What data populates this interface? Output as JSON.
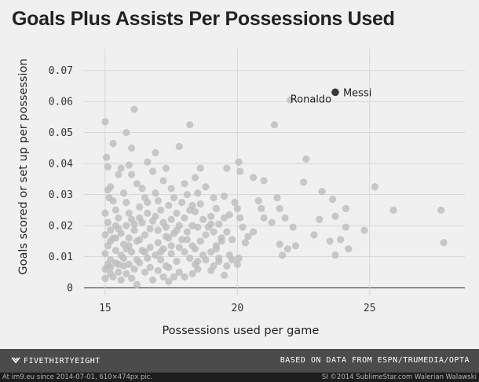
{
  "chart_data": {
    "type": "scatter",
    "title": "Goals Plus Assists Per Possessions Used",
    "xlabel": "Possessions used per game",
    "ylabel": "Goals scored or set up per possession",
    "xlim": [
      14.2,
      28.6
    ],
    "ylim": [
      0,
      0.075
    ],
    "x_ticks": [
      15,
      20,
      25
    ],
    "x_tick_labels": [
      "15",
      "20",
      "25"
    ],
    "y_ticks": [
      0,
      0.01,
      0.02,
      0.03,
      0.04,
      0.05,
      0.06,
      0.07
    ],
    "y_tick_labels": [
      "0",
      "0.01",
      "0.02",
      "0.03",
      "0.04",
      "0.05",
      "0.06",
      "0.07"
    ],
    "grid": true,
    "colors": {
      "point": "#bdbdbd",
      "highlight": "#3a3a3a",
      "grid": "#d6d6d6"
    },
    "highlights": [
      {
        "name": "Messi",
        "x": 23.7,
        "y": 0.063
      }
    ],
    "annotations": [
      {
        "text": "Ronaldo",
        "x": 22.0,
        "y": 0.061
      }
    ],
    "points": [
      [
        15.0,
        0.0535
      ],
      [
        15.05,
        0.042
      ],
      [
        15.1,
        0.039
      ],
      [
        15.2,
        0.0325
      ],
      [
        15.1,
        0.0315
      ],
      [
        15.15,
        0.029
      ],
      [
        15.3,
        0.0465
      ],
      [
        15.5,
        0.0365
      ],
      [
        15.8,
        0.05
      ],
      [
        16.0,
        0.045
      ],
      [
        16.1,
        0.0575
      ],
      [
        15.9,
        0.0395
      ],
      [
        15.6,
        0.0385
      ],
      [
        16.6,
        0.0405
      ],
      [
        16.9,
        0.0435
      ],
      [
        17.8,
        0.0455
      ],
      [
        18.2,
        0.0525
      ],
      [
        17.3,
        0.0385
      ],
      [
        18.4,
        0.0355
      ],
      [
        18.6,
        0.0385
      ],
      [
        19.6,
        0.0385
      ],
      [
        20.05,
        0.0405
      ],
      [
        20.1,
        0.0375
      ],
      [
        20.6,
        0.0355
      ],
      [
        21.0,
        0.0345
      ],
      [
        21.4,
        0.0525
      ],
      [
        22.0,
        0.0605
      ],
      [
        22.6,
        0.0415
      ],
      [
        22.5,
        0.034
      ],
      [
        23.2,
        0.031
      ],
      [
        23.6,
        0.0285
      ],
      [
        23.7,
        0.023
      ],
      [
        24.1,
        0.0255
      ],
      [
        24.1,
        0.0195
      ],
      [
        23.9,
        0.0155
      ],
      [
        24.2,
        0.0125
      ],
      [
        23.5,
        0.015
      ],
      [
        23.7,
        0.0105
      ],
      [
        23.1,
        0.022
      ],
      [
        22.9,
        0.017
      ],
      [
        22.1,
        0.0195
      ],
      [
        22.2,
        0.0135
      ],
      [
        21.9,
        0.0125
      ],
      [
        21.7,
        0.0105
      ],
      [
        21.6,
        0.014
      ],
      [
        21.8,
        0.0225
      ],
      [
        21.6,
        0.0255
      ],
      [
        21.5,
        0.029
      ],
      [
        21.3,
        0.021
      ],
      [
        21.0,
        0.0225
      ],
      [
        20.9,
        0.0255
      ],
      [
        20.8,
        0.028
      ],
      [
        20.6,
        0.018
      ],
      [
        20.4,
        0.0165
      ],
      [
        20.3,
        0.0145
      ],
      [
        20.1,
        0.0225
      ],
      [
        20.0,
        0.0255
      ],
      [
        19.9,
        0.0275
      ],
      [
        19.7,
        0.0235
      ],
      [
        19.6,
        0.018
      ],
      [
        19.4,
        0.015
      ],
      [
        19.2,
        0.0125
      ],
      [
        19.0,
        0.0205
      ],
      [
        20.05,
        0.0095
      ],
      [
        20.0,
        0.0075
      ],
      [
        19.8,
        0.009
      ],
      [
        19.7,
        0.0105
      ],
      [
        19.6,
        0.007
      ],
      [
        19.5,
        0.004
      ],
      [
        19.3,
        0.0085
      ],
      [
        19.0,
        0.0055
      ],
      [
        18.8,
        0.009
      ],
      [
        18.5,
        0.006
      ],
      [
        18.3,
        0.0045
      ],
      [
        18.0,
        0.0035
      ],
      [
        25.2,
        0.0325
      ],
      [
        25.9,
        0.025
      ],
      [
        27.7,
        0.025
      ],
      [
        27.8,
        0.0145
      ],
      [
        24.8,
        0.0185
      ],
      [
        15.0,
        0.024
      ],
      [
        15.1,
        0.021
      ],
      [
        15.2,
        0.0185
      ],
      [
        15.0,
        0.017
      ],
      [
        15.2,
        0.015
      ],
      [
        15.1,
        0.0135
      ],
      [
        15.0,
        0.011
      ],
      [
        15.2,
        0.009
      ],
      [
        15.1,
        0.0075
      ],
      [
        15.0,
        0.006
      ],
      [
        15.2,
        0.0045
      ],
      [
        15.0,
        0.003
      ],
      [
        15.4,
        0.025
      ],
      [
        15.5,
        0.0225
      ],
      [
        15.4,
        0.02
      ],
      [
        15.6,
        0.0175
      ],
      [
        15.4,
        0.016
      ],
      [
        15.7,
        0.014
      ],
      [
        15.4,
        0.012
      ],
      [
        15.6,
        0.0105
      ],
      [
        15.4,
        0.008
      ],
      [
        15.7,
        0.007
      ],
      [
        15.5,
        0.005
      ],
      [
        15.3,
        0.0035
      ],
      [
        15.8,
        0.0275
      ],
      [
        15.9,
        0.024
      ],
      [
        16.0,
        0.022
      ],
      [
        15.8,
        0.02
      ],
      [
        16.1,
        0.0185
      ],
      [
        15.9,
        0.016
      ],
      [
        16.2,
        0.015
      ],
      [
        15.8,
        0.0125
      ],
      [
        16.0,
        0.0115
      ],
      [
        16.2,
        0.009
      ],
      [
        15.9,
        0.0075
      ],
      [
        16.1,
        0.006
      ],
      [
        15.8,
        0.0045
      ],
      [
        16.0,
        0.003
      ],
      [
        16.4,
        0.032
      ],
      [
        16.5,
        0.029
      ],
      [
        16.3,
        0.026
      ],
      [
        16.6,
        0.024
      ],
      [
        16.4,
        0.021
      ],
      [
        16.7,
        0.019
      ],
      [
        16.5,
        0.017
      ],
      [
        16.3,
        0.0155
      ],
      [
        16.7,
        0.013
      ],
      [
        16.4,
        0.012
      ],
      [
        16.6,
        0.0095
      ],
      [
        16.3,
        0.008
      ],
      [
        16.7,
        0.0065
      ],
      [
        16.5,
        0.005
      ],
      [
        16.2,
        0.001
      ],
      [
        16.9,
        0.0305
      ],
      [
        17.0,
        0.028
      ],
      [
        17.1,
        0.025
      ],
      [
        16.9,
        0.023
      ],
      [
        17.2,
        0.021
      ],
      [
        17.0,
        0.0185
      ],
      [
        17.3,
        0.0165
      ],
      [
        17.0,
        0.0145
      ],
      [
        17.2,
        0.0125
      ],
      [
        16.9,
        0.0105
      ],
      [
        17.1,
        0.009
      ],
      [
        17.3,
        0.007
      ],
      [
        17.0,
        0.0055
      ],
      [
        17.2,
        0.0035
      ],
      [
        17.5,
        0.032
      ],
      [
        17.6,
        0.029
      ],
      [
        17.4,
        0.0265
      ],
      [
        17.7,
        0.024
      ],
      [
        17.5,
        0.022
      ],
      [
        17.8,
        0.02
      ],
      [
        17.6,
        0.0175
      ],
      [
        17.4,
        0.016
      ],
      [
        17.8,
        0.013
      ],
      [
        17.5,
        0.011
      ],
      [
        17.7,
        0.0085
      ],
      [
        17.4,
        0.0065
      ],
      [
        17.8,
        0.005
      ],
      [
        17.6,
        0.0035
      ],
      [
        18.0,
        0.0335
      ],
      [
        18.1,
        0.03
      ],
      [
        17.9,
        0.0275
      ],
      [
        18.2,
        0.025
      ],
      [
        18.0,
        0.0225
      ],
      [
        18.3,
        0.02
      ],
      [
        18.1,
        0.018
      ],
      [
        17.9,
        0.0155
      ],
      [
        18.3,
        0.0135
      ],
      [
        18.0,
        0.0115
      ],
      [
        18.2,
        0.0095
      ],
      [
        18.4,
        0.0075
      ],
      [
        18.5,
        0.0305
      ],
      [
        18.6,
        0.027
      ],
      [
        18.4,
        0.0245
      ],
      [
        18.7,
        0.022
      ],
      [
        18.5,
        0.0195
      ],
      [
        18.8,
        0.017
      ],
      [
        18.6,
        0.015
      ],
      [
        18.4,
        0.0125
      ],
      [
        18.7,
        0.0105
      ],
      [
        18.5,
        0.0085
      ],
      [
        19.1,
        0.029
      ],
      [
        19.2,
        0.0255
      ],
      [
        19.0,
        0.023
      ],
      [
        19.3,
        0.0205
      ],
      [
        19.1,
        0.018
      ],
      [
        19.4,
        0.016
      ],
      [
        19.2,
        0.0135
      ],
      [
        19.0,
        0.0115
      ],
      [
        19.3,
        0.0095
      ],
      [
        19.1,
        0.007
      ],
      [
        15.3,
        0.028
      ],
      [
        15.5,
        0.019
      ],
      [
        15.7,
        0.0095
      ],
      [
        15.9,
        0.0135
      ],
      [
        16.1,
        0.0205
      ],
      [
        16.3,
        0.0225
      ],
      [
        16.5,
        0.0115
      ],
      [
        16.8,
        0.0215
      ],
      [
        17.1,
        0.0115
      ],
      [
        17.3,
        0.0195
      ],
      [
        17.5,
        0.0135
      ],
      [
        17.7,
        0.0185
      ],
      [
        18.1,
        0.0155
      ],
      [
        18.3,
        0.0265
      ],
      [
        18.9,
        0.0195
      ],
      [
        19.5,
        0.0225
      ],
      [
        19.8,
        0.0155
      ],
      [
        20.2,
        0.0195
      ],
      [
        15.2,
        0.0065
      ],
      [
        15.6,
        0.0025
      ],
      [
        16.8,
        0.0025
      ],
      [
        17.4,
        0.002
      ],
      [
        15.3,
        0.016
      ],
      [
        15.5,
        0.0075
      ],
      [
        16.6,
        0.0275
      ],
      [
        17.2,
        0.0345
      ],
      [
        16.8,
        0.0375
      ],
      [
        16.2,
        0.0335
      ],
      [
        15.7,
        0.0305
      ],
      [
        16.0,
        0.0365
      ],
      [
        18.8,
        0.0325
      ],
      [
        19.5,
        0.0295
      ]
    ]
  },
  "footer": {
    "brand": "FIVETHIRTYEIGHT",
    "source": "BASED ON DATA FROM ESPN/TRUMEDIA/OPTA"
  },
  "watermark": {
    "left": "At im9.eu since 2014-07-01, 610×474px pic.",
    "right": "SI ©2014 SublimeStar.com Walerian Walawski"
  }
}
